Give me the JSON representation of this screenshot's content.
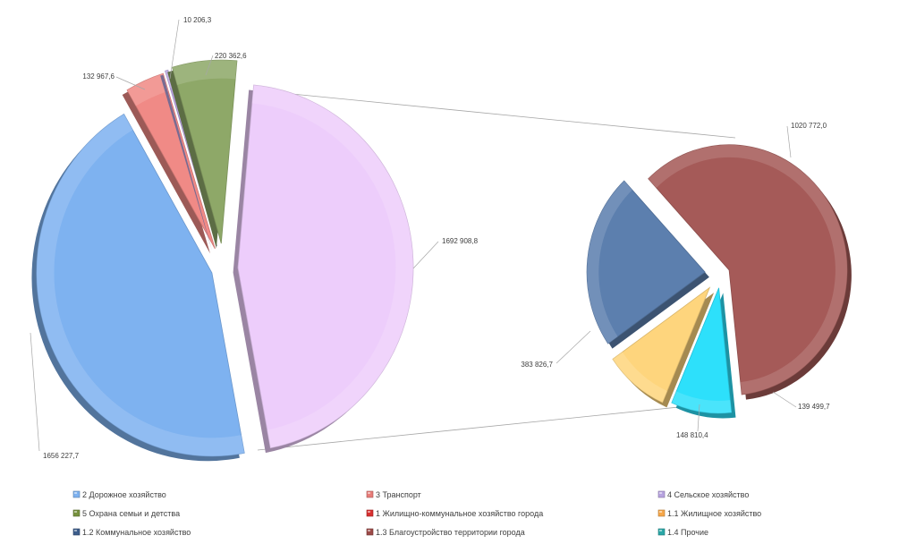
{
  "chart_data": {
    "type": "pie",
    "subtype": "bar-of-pie-exploded-3d",
    "main_pie": [
      {
        "name": "2 Дорожное хозяйство",
        "value": 1656227.7,
        "label": "1656 227,7",
        "color": "#7eb2f0"
      },
      {
        "name": "3 Транспорт",
        "value": 132967.6,
        "label": "132 967,6",
        "color": "#f08a86"
      },
      {
        "name": "4 Сельское хозяйство",
        "value": 10206.3,
        "label": "10 206,3",
        "color": "#b8a4e0"
      },
      {
        "name": "5 Охрана семьи и детства",
        "value": 220362.6,
        "label": "220 362,6",
        "color": "#8ea868"
      },
      {
        "name": "1 Жилищно-коммунальное  хозяйство города",
        "value": 1692908.8,
        "label": "1692 908,8",
        "color": "#edcdfb"
      }
    ],
    "secondary_pie": [
      {
        "name": "1.3 Благоустройство территории города",
        "value": 1020772.0,
        "label": "1020 772,0",
        "color": "#a55a58"
      },
      {
        "name": "1.4 Прочие",
        "value": 139499.7,
        "label": "139 499,7",
        "color": "#2de0fb"
      },
      {
        "name": "1.1 Жилищное хозяйство",
        "value": 148810.4,
        "label": "148 810,4",
        "color": "#fed57d"
      },
      {
        "name": "1.2 Коммунальное хозяйство",
        "value": 383826.7,
        "label": "383 826,7",
        "color": "#5c7fae"
      }
    ],
    "legend": [
      {
        "name": "2 Дорожное хозяйство",
        "color": "#7eb2f0"
      },
      {
        "name": "3 Транспорт",
        "color": "#e87c78"
      },
      {
        "name": "4 Сельское хозяйство",
        "color": "#b8a4e0"
      },
      {
        "name": "5 Охрана семьи и детства",
        "color": "#76913e"
      },
      {
        "name": "1 Жилищно-коммунальное  хозяйство города",
        "color": "#d83030"
      },
      {
        "name": "1.1 Жилищное хозяйство",
        "color": "#f7a84a"
      },
      {
        "name": "1.2 Коммунальное хозяйство",
        "color": "#3d5e8c"
      },
      {
        "name": "1.3 Благоустройство территории города",
        "color": "#9c4a48"
      },
      {
        "name": "1.4 Прочие",
        "color": "#2aa7a7"
      }
    ],
    "legend_position": "bottom",
    "grid": false
  }
}
